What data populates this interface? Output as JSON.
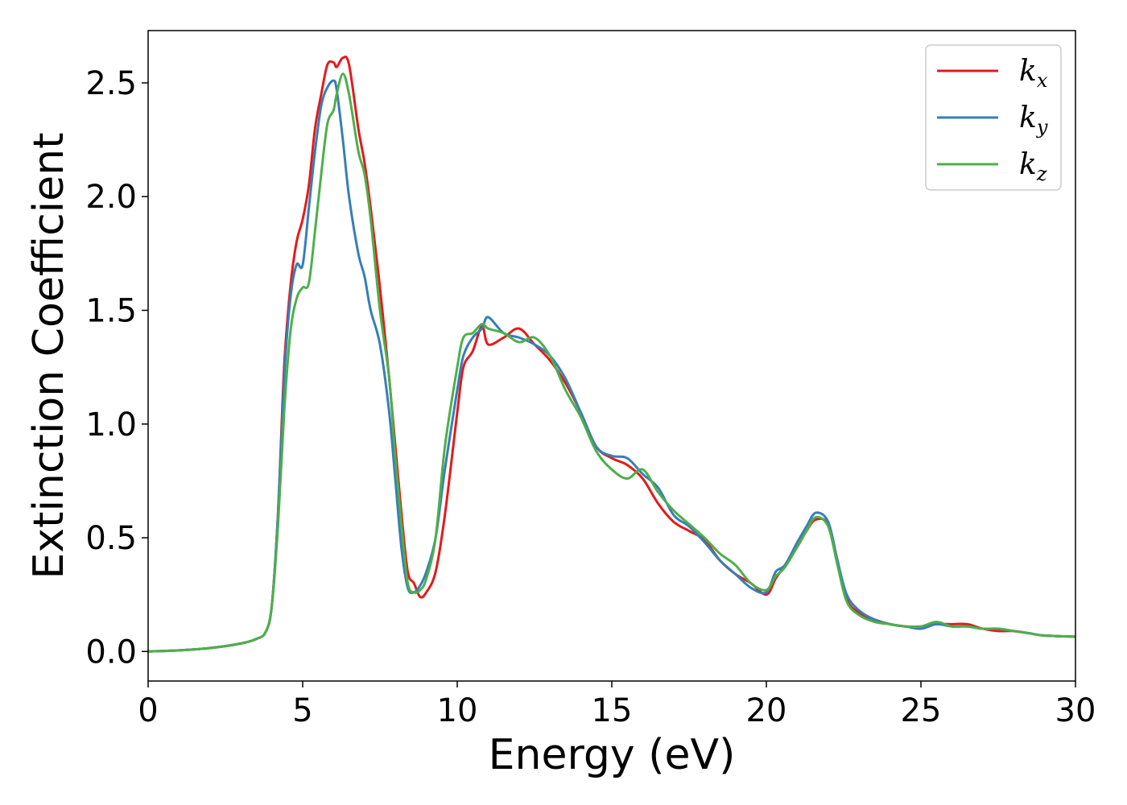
{
  "chart_data": {
    "type": "line",
    "title": "",
    "xlabel": "Energy (eV)",
    "ylabel": "Extinction Coefficient",
    "xlim": [
      0,
      30
    ],
    "ylim": [
      -0.13,
      2.73
    ],
    "xticks": [
      0,
      5,
      10,
      15,
      20,
      25,
      30
    ],
    "xtick_labels": [
      "0",
      "5",
      "10",
      "15",
      "20",
      "25",
      "30"
    ],
    "yticks": [
      0.0,
      0.5,
      1.0,
      1.5,
      2.0,
      2.5
    ],
    "ytick_labels": [
      "0.0",
      "0.5",
      "1.0",
      "1.5",
      "2.0",
      "2.5"
    ],
    "grid": false,
    "legend_position": "top-right",
    "series": [
      {
        "name": "k_x",
        "label_base": "k",
        "label_sub": "x",
        "color": "#e41a1c",
        "x": [
          0,
          1,
          2,
          3,
          3.5,
          3.8,
          4.0,
          4.2,
          4.4,
          4.6,
          4.8,
          5.0,
          5.2,
          5.4,
          5.6,
          5.8,
          6.0,
          6.1,
          6.3,
          6.5,
          6.8,
          7.0,
          7.2,
          7.5,
          7.8,
          8.0,
          8.2,
          8.4,
          8.6,
          8.8,
          9.0,
          9.3,
          9.6,
          10.0,
          10.2,
          10.5,
          10.8,
          11.0,
          11.5,
          12.0,
          12.5,
          13.0,
          13.5,
          14.0,
          14.5,
          15.0,
          15.5,
          16.0,
          16.5,
          17.0,
          17.5,
          18.0,
          18.5,
          19.0,
          19.5,
          20.0,
          20.3,
          20.6,
          21.0,
          21.3,
          21.6,
          22.0,
          22.3,
          22.6,
          23.0,
          23.5,
          24.0,
          24.5,
          25.0,
          25.5,
          26.0,
          26.5,
          27.0,
          27.5,
          28.0,
          28.5,
          29.0,
          30.0
        ],
        "y": [
          0.0,
          0.005,
          0.015,
          0.035,
          0.055,
          0.085,
          0.2,
          0.6,
          1.25,
          1.6,
          1.8,
          1.9,
          2.05,
          2.3,
          2.45,
          2.58,
          2.59,
          2.57,
          2.61,
          2.58,
          2.3,
          2.15,
          1.95,
          1.6,
          1.2,
          0.9,
          0.6,
          0.35,
          0.3,
          0.24,
          0.26,
          0.35,
          0.6,
          1.05,
          1.25,
          1.32,
          1.43,
          1.35,
          1.38,
          1.42,
          1.35,
          1.28,
          1.18,
          1.05,
          0.9,
          0.85,
          0.82,
          0.76,
          0.65,
          0.57,
          0.53,
          0.49,
          0.4,
          0.34,
          0.3,
          0.25,
          0.32,
          0.38,
          0.46,
          0.53,
          0.58,
          0.56,
          0.4,
          0.23,
          0.17,
          0.14,
          0.12,
          0.11,
          0.11,
          0.12,
          0.12,
          0.12,
          0.1,
          0.09,
          0.09,
          0.08,
          0.07,
          0.065
        ]
      },
      {
        "name": "k_y",
        "label_base": "k",
        "label_sub": "y",
        "color": "#377eb8",
        "x": [
          0,
          1,
          2,
          3,
          3.5,
          3.8,
          4.0,
          4.2,
          4.4,
          4.6,
          4.8,
          5.0,
          5.2,
          5.4,
          5.6,
          5.8,
          6.0,
          6.1,
          6.3,
          6.5,
          6.8,
          7.0,
          7.2,
          7.5,
          7.8,
          8.0,
          8.2,
          8.4,
          8.6,
          8.8,
          9.0,
          9.3,
          9.6,
          10.0,
          10.2,
          10.5,
          10.8,
          11.0,
          11.5,
          12.0,
          12.5,
          13.0,
          13.5,
          14.0,
          14.5,
          15.0,
          15.5,
          16.0,
          16.5,
          17.0,
          17.5,
          18.0,
          18.5,
          19.0,
          19.5,
          20.0,
          20.3,
          20.6,
          21.0,
          21.3,
          21.6,
          22.0,
          22.3,
          22.6,
          23.0,
          23.5,
          24.0,
          24.5,
          25.0,
          25.5,
          26.0,
          26.5,
          27.0,
          27.5,
          28.0,
          28.5,
          29.0,
          30.0
        ],
        "y": [
          0.0,
          0.005,
          0.015,
          0.035,
          0.055,
          0.085,
          0.2,
          0.6,
          1.2,
          1.55,
          1.7,
          1.7,
          1.95,
          2.2,
          2.4,
          2.48,
          2.51,
          2.47,
          2.25,
          2.0,
          1.75,
          1.65,
          1.5,
          1.35,
          1.05,
          0.75,
          0.45,
          0.28,
          0.26,
          0.29,
          0.35,
          0.5,
          0.8,
          1.15,
          1.3,
          1.38,
          1.42,
          1.47,
          1.4,
          1.38,
          1.35,
          1.3,
          1.2,
          1.05,
          0.9,
          0.86,
          0.85,
          0.78,
          0.72,
          0.6,
          0.55,
          0.48,
          0.4,
          0.34,
          0.28,
          0.26,
          0.35,
          0.38,
          0.48,
          0.55,
          0.61,
          0.57,
          0.4,
          0.25,
          0.18,
          0.14,
          0.12,
          0.11,
          0.1,
          0.12,
          0.11,
          0.11,
          0.1,
          0.1,
          0.09,
          0.08,
          0.07,
          0.065
        ]
      },
      {
        "name": "k_z",
        "label_base": "k",
        "label_sub": "z",
        "color": "#4daf4a",
        "x": [
          0,
          1,
          2,
          3,
          3.5,
          3.8,
          4.0,
          4.2,
          4.4,
          4.6,
          4.8,
          5.0,
          5.2,
          5.4,
          5.6,
          5.8,
          6.0,
          6.1,
          6.3,
          6.5,
          6.8,
          7.0,
          7.2,
          7.5,
          7.8,
          8.0,
          8.2,
          8.4,
          8.6,
          8.8,
          9.0,
          9.3,
          9.6,
          10.0,
          10.2,
          10.5,
          10.8,
          11.0,
          11.5,
          12.0,
          12.5,
          13.0,
          13.5,
          14.0,
          14.5,
          15.0,
          15.5,
          16.0,
          16.5,
          17.0,
          17.5,
          18.0,
          18.5,
          19.0,
          19.5,
          20.0,
          20.3,
          20.6,
          21.0,
          21.3,
          21.6,
          22.0,
          22.3,
          22.6,
          23.0,
          23.5,
          24.0,
          24.5,
          25.0,
          25.5,
          26.0,
          26.5,
          27.0,
          27.5,
          28.0,
          28.5,
          29.0,
          30.0
        ],
        "y": [
          0.0,
          0.005,
          0.015,
          0.035,
          0.055,
          0.085,
          0.2,
          0.55,
          1.05,
          1.4,
          1.55,
          1.6,
          1.62,
          1.85,
          2.1,
          2.32,
          2.38,
          2.45,
          2.54,
          2.45,
          2.2,
          2.1,
          1.9,
          1.5,
          1.2,
          0.85,
          0.55,
          0.3,
          0.26,
          0.27,
          0.32,
          0.5,
          0.9,
          1.25,
          1.38,
          1.4,
          1.44,
          1.42,
          1.4,
          1.36,
          1.38,
          1.3,
          1.15,
          1.03,
          0.88,
          0.8,
          0.76,
          0.8,
          0.7,
          0.62,
          0.56,
          0.5,
          0.43,
          0.38,
          0.3,
          0.27,
          0.33,
          0.37,
          0.46,
          0.53,
          0.59,
          0.55,
          0.38,
          0.22,
          0.16,
          0.13,
          0.12,
          0.11,
          0.11,
          0.13,
          0.11,
          0.11,
          0.1,
          0.1,
          0.09,
          0.08,
          0.07,
          0.065
        ]
      }
    ]
  }
}
